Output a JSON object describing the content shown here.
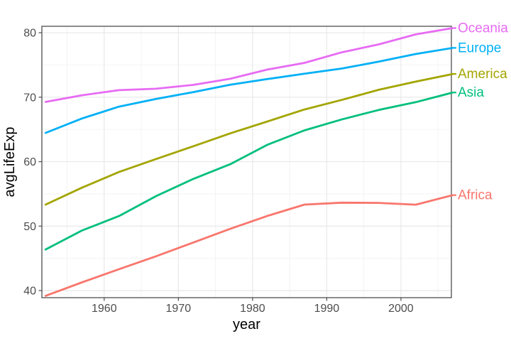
{
  "figure": {
    "background": "#ffffff"
  },
  "chart_data": {
    "type": "line",
    "title": "",
    "xlabel": "year",
    "ylabel": "avgLifeExp",
    "x": [
      1952,
      1957,
      1962,
      1967,
      1972,
      1977,
      1982,
      1987,
      1992,
      1997,
      2002,
      2007
    ],
    "series": [
      {
        "name": "Oceania",
        "color": "#E76BF3",
        "values": [
          69.25,
          70.3,
          71.09,
          71.31,
          71.91,
          72.86,
          74.29,
          75.32,
          76.95,
          78.19,
          79.74,
          80.72
        ]
      },
      {
        "name": "Europe",
        "color": "#00B0F6",
        "values": [
          64.41,
          66.7,
          68.54,
          69.74,
          70.78,
          71.94,
          72.81,
          73.64,
          74.44,
          75.51,
          76.7,
          77.65
        ]
      },
      {
        "name": "America",
        "color": "#A3A500",
        "values": [
          53.28,
          55.96,
          58.4,
          60.41,
          62.39,
          64.39,
          66.23,
          68.09,
          69.57,
          71.15,
          72.42,
          73.61
        ]
      },
      {
        "name": "Asia",
        "color": "#00BF7D",
        "values": [
          46.31,
          49.32,
          51.56,
          54.66,
          57.32,
          59.61,
          62.62,
          64.85,
          66.54,
          68.02,
          69.23,
          70.73
        ]
      },
      {
        "name": "Africa",
        "color": "#F8766D",
        "values": [
          39.14,
          41.27,
          43.32,
          45.33,
          47.45,
          49.58,
          51.59,
          53.34,
          53.63,
          53.6,
          53.33,
          54.81
        ]
      }
    ],
    "x_ticks": [
      1960,
      1970,
      1980,
      1990,
      2000
    ],
    "x_minor_ticks": [
      1955,
      1965,
      1975,
      1985,
      1995,
      2005
    ],
    "y_ticks": [
      40,
      50,
      60,
      70,
      80
    ],
    "y_minor_ticks": [
      45,
      55,
      65,
      75
    ],
    "x_domain": [
      1951.6,
      2006.8
    ],
    "y_domain": [
      38.9,
      81.0
    ],
    "grid": true,
    "legend_position": "labels-at-line-ends-right",
    "colors": {
      "panel_background": "#ffffff",
      "panel_border": "#4d4d4d",
      "grid_major": "#e8e8e8",
      "grid_minor": "#f2f2f2",
      "tick_mark": "#4d4d4d",
      "tick_label": "#4d4d4d",
      "axis_title": "#000000"
    }
  }
}
